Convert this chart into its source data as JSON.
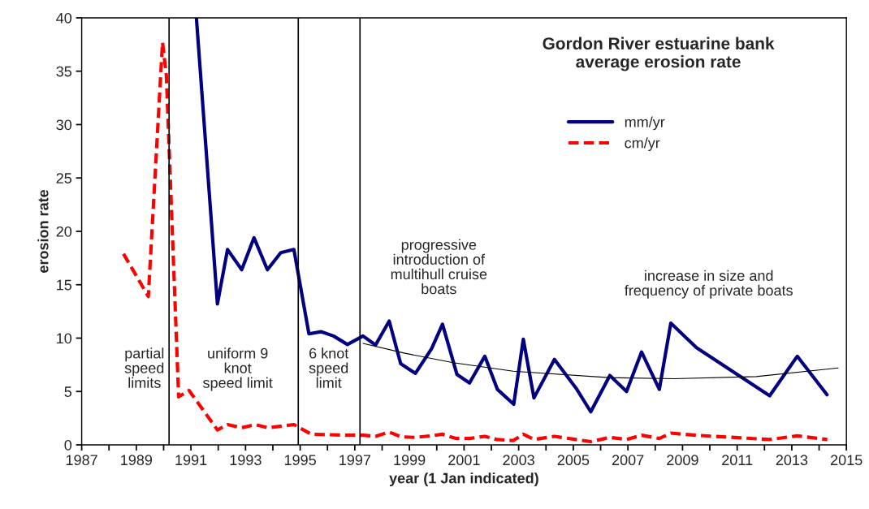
{
  "chart_data": {
    "type": "line",
    "title": "Gordon River estuarine bank\naverage erosion rate",
    "xlabel": "year (1 Jan indicated)",
    "ylabel": "erosion rate",
    "xlim": [
      1987,
      2015
    ],
    "ylim": [
      0,
      40
    ],
    "xticks": [
      1987,
      {
        "value": 1988,
        "label": null
      },
      1989,
      {
        "value": 1990,
        "label": null
      },
      1991,
      {
        "value": 1992,
        "label": null
      },
      1993,
      {
        "value": 1994,
        "label": null
      },
      1995,
      {
        "value": 1996,
        "label": null
      },
      1997,
      {
        "value": 1998,
        "label": null
      },
      1999,
      {
        "value": 2000,
        "label": null
      },
      2001,
      {
        "value": 2002,
        "label": null
      },
      2003,
      {
        "value": 2004,
        "label": null
      },
      2005,
      {
        "value": 2006,
        "label": null
      },
      2007,
      {
        "value": 2008,
        "label": null
      },
      2009,
      {
        "value": 2010,
        "label": null
      },
      2011,
      {
        "value": 2012,
        "label": null
      },
      2013,
      {
        "value": 2014,
        "label": null
      },
      2015
    ],
    "yticks": [
      0,
      5,
      10,
      15,
      20,
      25,
      30,
      35,
      40
    ],
    "grid": false,
    "legend": "top right",
    "series": [
      {
        "name": "mm/yr",
        "color": "#000080",
        "line_style": "solid",
        "x": [
          1991.2,
          1991.97,
          1992.34,
          1992.86,
          1993.31,
          1993.8,
          1994.29,
          1994.77,
          1995.32,
          1995.76,
          1996.22,
          1996.73,
          1997.3,
          1997.76,
          1998.26,
          1998.68,
          1999.22,
          1999.81,
          2000.21,
          2000.74,
          2001.2,
          2001.76,
          2002.22,
          2002.82,
          2003.17,
          2003.56,
          2004.31,
          2005.13,
          2005.64,
          2006.34,
          2006.95,
          2007.5,
          2008.15,
          2008.57,
          2009.51,
          2012.19,
          2013.2,
          2014.29
        ],
        "values": [
          40,
          13.2,
          18.3,
          16.4,
          19.4,
          16.4,
          18.0,
          18.3,
          10.4,
          10.6,
          10.2,
          9.4,
          10.2,
          9.35,
          11.6,
          7.6,
          6.7,
          9.0,
          11.3,
          6.6,
          5.8,
          8.3,
          5.2,
          3.8,
          9.9,
          4.4,
          8.0,
          5.2,
          3.1,
          6.5,
          5.0,
          8.7,
          5.2,
          11.4,
          9.1,
          4.6,
          8.3,
          4.7
        ]
      },
      {
        "name": "cm/yr",
        "color": "#ff0000",
        "line_style": "dashed",
        "x": [
          1988.53,
          1989.44,
          1989.96,
          1990.1,
          1990.55,
          1990.93,
          1991.97,
          1992.34,
          1992.86,
          1993.34,
          1993.83,
          1994.77,
          1995.4,
          1996.73,
          1997.3,
          1997.76,
          1998.26,
          1998.7,
          1999.2,
          1999.8,
          2000.2,
          2000.7,
          2001.2,
          2001.76,
          2002.2,
          2002.8,
          2003.17,
          2003.56,
          2004.3,
          2005.1,
          2005.64,
          2006.34,
          2006.95,
          2007.5,
          2008.15,
          2008.57,
          2009.5,
          2012.2,
          2013.2,
          2014.3
        ],
        "values": [
          17.9,
          13.9,
          37.7,
          34.6,
          4.5,
          5.1,
          1.4,
          1.9,
          1.6,
          1.9,
          1.6,
          1.9,
          1.0,
          0.9,
          0.9,
          0.8,
          1.2,
          0.75,
          0.7,
          0.85,
          1.0,
          0.6,
          0.6,
          0.8,
          0.5,
          0.4,
          1.0,
          0.5,
          0.8,
          0.5,
          0.3,
          0.7,
          0.5,
          0.9,
          0.6,
          1.1,
          0.9,
          0.5,
          0.85,
          0.5
        ]
      },
      {
        "color": "#000000",
        "line_style": "solid",
        "x": [
          1997.3,
          1998.8,
          2000.6,
          2002.8,
          2006.3,
          2008.7,
          2011.7,
          2014.7
        ],
        "values": [
          9.5,
          8.6,
          7.7,
          6.9,
          6.3,
          6.2,
          6.4,
          7.2
        ]
      }
    ],
    "ref_lines": [
      {
        "axis": "x",
        "value": 1990.2,
        "color": "#000000"
      },
      {
        "axis": "x",
        "value": 1994.93,
        "color": "#000000"
      },
      {
        "axis": "x",
        "value": 1997.19,
        "color": "#000000"
      }
    ],
    "annotations": [
      "partial\nspeed\nlimits",
      "uniform 9\nknot\nspeed limit",
      "6 knot\nspeed\nlimit",
      "progressive\nintroduction of\nmultihull cruise\nboats",
      "increase in size and\nfrequency of private boats"
    ]
  }
}
